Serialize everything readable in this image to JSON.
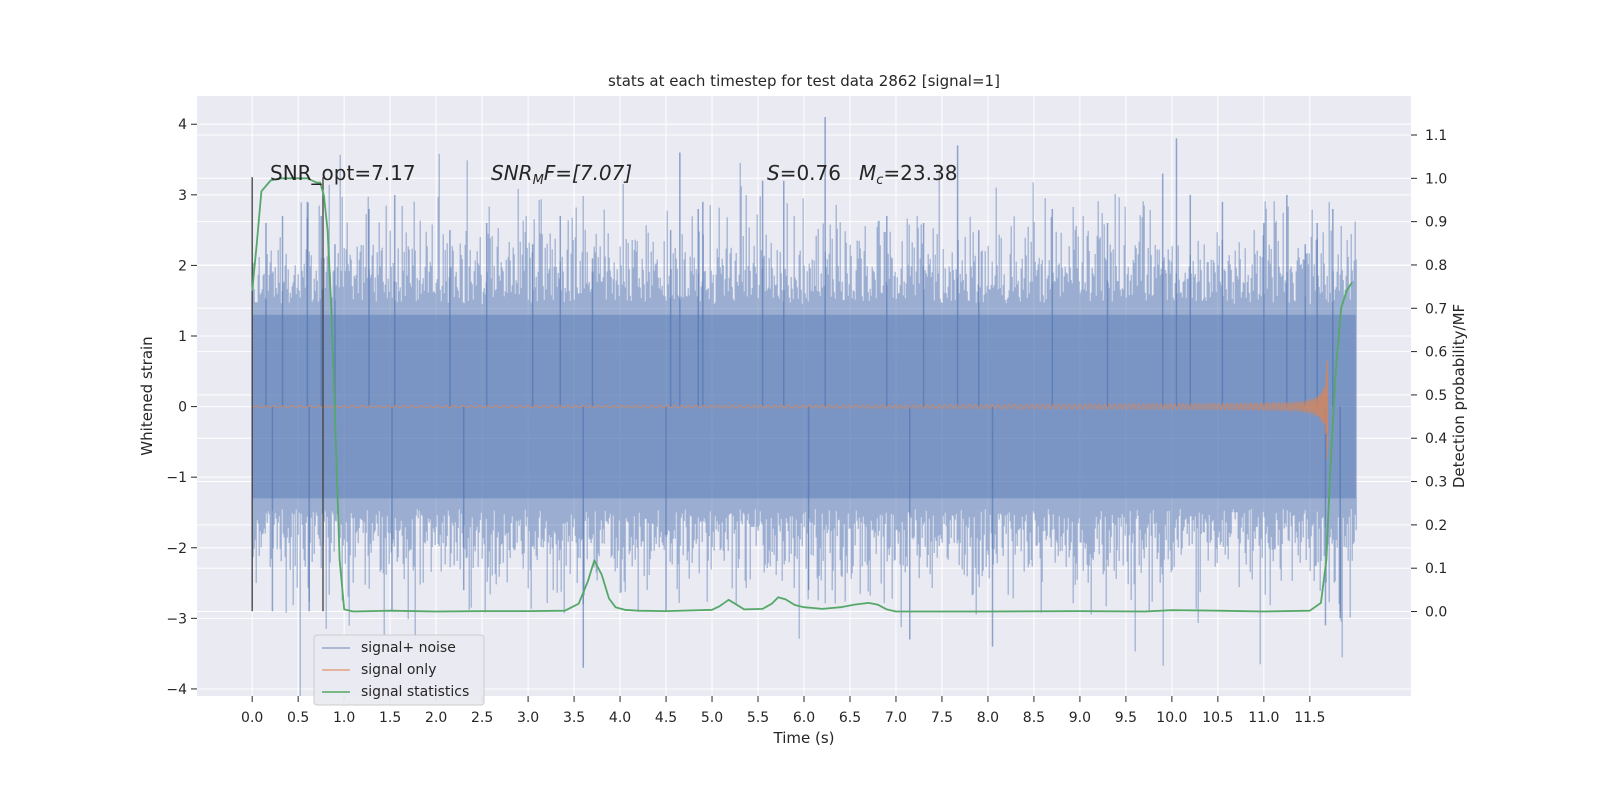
{
  "chart_data": {
    "type": "line",
    "title": "stats at each timestep for test data 2862 [signal=1]",
    "xlabel": "Time (s)",
    "ylabel": "Whitened strain",
    "ylabel_right": "Detection probability/MF",
    "xlim": [
      -0.6,
      12.6
    ],
    "ylim": [
      -4.1,
      4.4
    ],
    "ylim_right": [
      -0.195,
      1.19
    ],
    "x_ticks": [
      0.0,
      0.5,
      1.0,
      1.5,
      2.0,
      2.5,
      3.0,
      3.5,
      4.0,
      4.5,
      5.0,
      5.5,
      6.0,
      6.5,
      7.0,
      7.5,
      8.0,
      8.5,
      9.0,
      9.5,
      10.0,
      10.5,
      11.0,
      11.5
    ],
    "x_tick_labels": [
      "0.0",
      "0.5",
      "1.0",
      "1.5",
      "2.0",
      "2.5",
      "3.0",
      "3.5",
      "4.0",
      "4.5",
      "5.0",
      "5.5",
      "6.0",
      "6.5",
      "7.0",
      "7.5",
      "8.0",
      "8.5",
      "9.0",
      "9.5",
      "10.0",
      "10.5",
      "11.0",
      "11.5"
    ],
    "y_ticks": [
      4,
      3,
      2,
      1,
      0,
      -1,
      -2,
      -3,
      -4
    ],
    "y_tick_labels": [
      "4",
      "3",
      "2",
      "1",
      "0",
      "−1",
      "−2",
      "−3",
      "−4"
    ],
    "y_ticks_right": [
      1.1,
      1.0,
      0.9,
      0.8,
      0.7,
      0.6,
      0.5,
      0.4,
      0.3,
      0.2,
      0.1,
      0.0
    ],
    "y_tick_labels_right": [
      "1.1",
      "1.0",
      "0.9",
      "0.8",
      "0.7",
      "0.6",
      "0.5",
      "0.4",
      "0.3",
      "0.2",
      "0.1",
      "0.0"
    ],
    "grid": true,
    "legend_position": "lower-left",
    "annotations": {
      "snr_opt": "SNR_opt=7.17",
      "snr_mf_main": "SNR",
      "snr_mf_sub": "M",
      "snr_mf_rest": "F=[7.07]",
      "s_main": "S",
      "s_rest": "=0.76",
      "mc_main": "M",
      "mc_sub": "c",
      "mc_rest": "=23.38"
    },
    "vertical_markers": [
      0.0,
      0.77
    ],
    "series": [
      {
        "name": "signal+ noise",
        "color": "#4c72b0",
        "t_start": 0.0,
        "t_end": 12.0,
        "envelope": 1.3,
        "peaks": [
          {
            "x": 0.15,
            "y": 2.6
          },
          {
            "x": 0.22,
            "y": -2.9
          },
          {
            "x": 0.33,
            "y": 2.7
          },
          {
            "x": 0.6,
            "y": 2.9
          },
          {
            "x": 0.62,
            "y": -2.9
          },
          {
            "x": 0.75,
            "y": 2.7
          },
          {
            "x": 0.9,
            "y": 2.3
          },
          {
            "x": 1.27,
            "y": 2.8
          },
          {
            "x": 1.52,
            "y": -2.9
          },
          {
            "x": 1.55,
            "y": 3.0
          },
          {
            "x": 2.15,
            "y": 2.5
          },
          {
            "x": 2.3,
            "y": -2.6
          },
          {
            "x": 2.55,
            "y": 2.6
          },
          {
            "x": 3.05,
            "y": 2.3
          },
          {
            "x": 3.35,
            "y": 2.7
          },
          {
            "x": 3.6,
            "y": -3.7
          },
          {
            "x": 3.7,
            "y": 2.1
          },
          {
            "x": 4.55,
            "y": 2.5
          },
          {
            "x": 4.65,
            "y": 3.6
          },
          {
            "x": 4.85,
            "y": 2.8
          },
          {
            "x": 4.9,
            "y": 2.9
          },
          {
            "x": 4.5,
            "y": -2.9
          },
          {
            "x": 5.55,
            "y": 3.2
          },
          {
            "x": 5.78,
            "y": 3.2
          },
          {
            "x": 6.05,
            "y": -2.6
          },
          {
            "x": 6.23,
            "y": 4.1
          },
          {
            "x": 6.9,
            "y": 2.7
          },
          {
            "x": 7.3,
            "y": 2.6
          },
          {
            "x": 7.15,
            "y": -3.3
          },
          {
            "x": 7.67,
            "y": 3.7
          },
          {
            "x": 8.05,
            "y": -3.4
          },
          {
            "x": 7.9,
            "y": 2.5
          },
          {
            "x": 8.7,
            "y": 2.8
          },
          {
            "x": 9.3,
            "y": 2.6
          },
          {
            "x": 9.9,
            "y": 3.3
          },
          {
            "x": 10.05,
            "y": 3.8
          },
          {
            "x": 10.2,
            "y": 3.0
          },
          {
            "x": 10.55,
            "y": 2.9
          },
          {
            "x": 11.0,
            "y": 2.6
          },
          {
            "x": 11.25,
            "y": 3.0
          },
          {
            "x": 11.45,
            "y": 2.3
          },
          {
            "x": 11.58,
            "y": 2.6
          },
          {
            "x": 11.67,
            "y": -3.1
          },
          {
            "x": 11.75,
            "y": 2.8
          },
          {
            "x": 11.83,
            "y": -3.0
          }
        ]
      },
      {
        "name": "signal only",
        "color": "#dd8452",
        "t_start": 0.0,
        "t_end": 11.7,
        "merger_time": 11.7,
        "peak_amplitude": 1.2
      },
      {
        "name": "signal statistics",
        "color": "#55a868",
        "axis": "right",
        "x": [
          0.0,
          0.05,
          0.1,
          0.2,
          0.3,
          0.4,
          0.5,
          0.6,
          0.65,
          0.7,
          0.74,
          0.78,
          0.82,
          0.86,
          0.9,
          0.95,
          1.0,
          1.1,
          1.5,
          2.0,
          2.5,
          3.0,
          3.4,
          3.55,
          3.65,
          3.72,
          3.8,
          3.88,
          3.95,
          4.05,
          4.2,
          4.5,
          5.0,
          5.08,
          5.18,
          5.25,
          5.35,
          5.55,
          5.65,
          5.72,
          5.8,
          5.9,
          6.0,
          6.2,
          6.4,
          6.55,
          6.7,
          6.8,
          6.9,
          7.0,
          7.5,
          8.0,
          9.0,
          9.7,
          10.0,
          10.5,
          11.0,
          11.5,
          11.62,
          11.68,
          11.72,
          11.78,
          11.84,
          11.9,
          11.96
        ],
        "y": [
          0.74,
          0.85,
          0.97,
          0.995,
          1.0,
          1.0,
          1.0,
          1.0,
          0.995,
          0.99,
          0.99,
          0.96,
          0.88,
          0.7,
          0.45,
          0.12,
          0.005,
          0.0,
          0.002,
          0.0,
          0.001,
          0.001,
          0.002,
          0.018,
          0.07,
          0.118,
          0.085,
          0.03,
          0.01,
          0.004,
          0.002,
          0.001,
          0.004,
          0.012,
          0.027,
          0.018,
          0.005,
          0.006,
          0.018,
          0.033,
          0.028,
          0.015,
          0.01,
          0.006,
          0.01,
          0.016,
          0.02,
          0.016,
          0.005,
          0.0,
          0.0,
          0.0,
          0.001,
          0.0,
          0.003,
          0.002,
          0.0,
          0.002,
          0.02,
          0.12,
          0.32,
          0.55,
          0.7,
          0.74,
          0.76
        ]
      }
    ]
  }
}
